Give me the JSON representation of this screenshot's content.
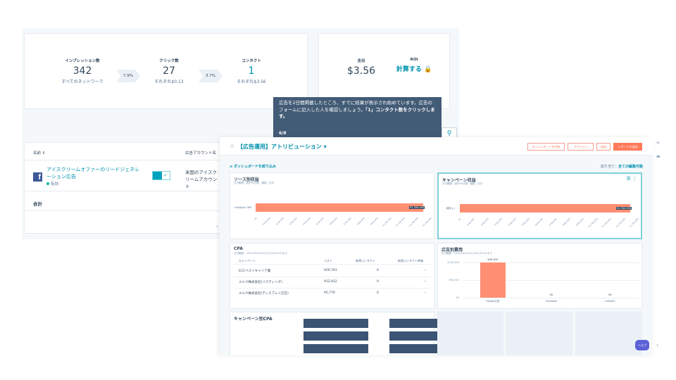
{
  "funnel": {
    "impressions": {
      "label": "インプレッション数",
      "value": "342",
      "sub": "すべてのネットワーク"
    },
    "rate1": "7.9%",
    "clicks": {
      "label": "クリック数",
      "value": "27",
      "sub": "それぞれ$0.13"
    },
    "rate2": "3.7%",
    "contacts": {
      "label": "コンタクト",
      "value": "1",
      "sub": "それぞれ$3.56"
    }
  },
  "spend": {
    "label": "支出",
    "value": "$3.56"
  },
  "roi": {
    "label": "ROI",
    "link": "計算する"
  },
  "table": {
    "col_name": "名前",
    "col_account": "広告アカウント名",
    "row": {
      "name": "アイスクリームオファーのリードジェネレーション広告",
      "status": "有効",
      "account": "米国のアイスクリームアカウント"
    },
    "total": "合計"
  },
  "tooltip": {
    "text": "広告を2日間掲載したところ、すでに結果が表示され始めています。広告のフォームに記入した人を確認しましょう。",
    "bold": "「1」コンタクト数をクリックします。",
    "step": "6/8"
  },
  "attribution": {
    "title": "【広告運用】アトリビューション",
    "buttons": [
      "ダッシュボードを共有",
      "アクション",
      "追加",
      "レポートを追加"
    ],
    "filter_link": "ダッシュボードを絞り込み",
    "assigned_label": "割り当て：",
    "assigned_value": "全ての編集可能",
    "source_panel": {
      "title": "ソース別収益",
      "sub": "日付範囲：過去90日間　頻度：日次",
      "bar_label": "HubSpot CRM",
      "bar_value": "¥1,300,000"
    },
    "campaign_panel": {
      "title": "キャンペーン収益",
      "sub": "日付範囲：過去90日間　頻度：日次",
      "bar_label": "(値なし)",
      "bar_value": "¥1,300,000"
    },
    "x_ticks": [
      "¥0",
      "¥100,000",
      "¥200,000",
      "¥300,000",
      "¥400,000",
      "¥500,000",
      "¥600,000",
      "¥700,000",
      "¥800,000",
      "¥900,000",
      "¥1,000,000",
      "¥1,100,000",
      "¥1,200,000",
      "¥1,300,000"
    ],
    "cpa": {
      "title": "CPA",
      "sub": "日付範囲：2022/04/2022から2022/07/31まで",
      "headers": [
        "キャンペーン",
        "コスト",
        "新規コンタクト",
        "新規コンタクト単価"
      ],
      "rows": [
        {
          "name": "ECCベストキャリア書",
          "cost": "¥29,763",
          "contacts": "0",
          "unit": "--"
        },
        {
          "name": "メルク株式会社(リスティング)",
          "cost": "¥12,912",
          "contacts": "0",
          "unit": "--"
        },
        {
          "name": "メルク株式会社(ディスプレイ広告)",
          "cost": "¥5,779",
          "contacts": "0",
          "unit": "--"
        }
      ]
    },
    "ad_spend": {
      "title": "広告別費用",
      "sub": "日付範囲：2022/04/20から2022/07/31まで",
      "y_ticks": [
        "¥100,000",
        "¥50,000",
        "¥0"
      ],
      "bars": [
        {
          "label": "Google広告",
          "value": 99300,
          "display": "¥99,300"
        },
        {
          "label": "Facebook",
          "value": 0,
          "display": "¥0"
        },
        {
          "label": "LinkedIn",
          "value": 0,
          "display": "¥0"
        }
      ]
    },
    "cpa_by_campaign": {
      "title": "キャンペーン別CPA"
    }
  },
  "help": "ヘルプ",
  "colors": {
    "accent": "#0091ae",
    "bar": "#ff8f73",
    "tooltip": "#425b76",
    "cta": "#ff7a59"
  }
}
